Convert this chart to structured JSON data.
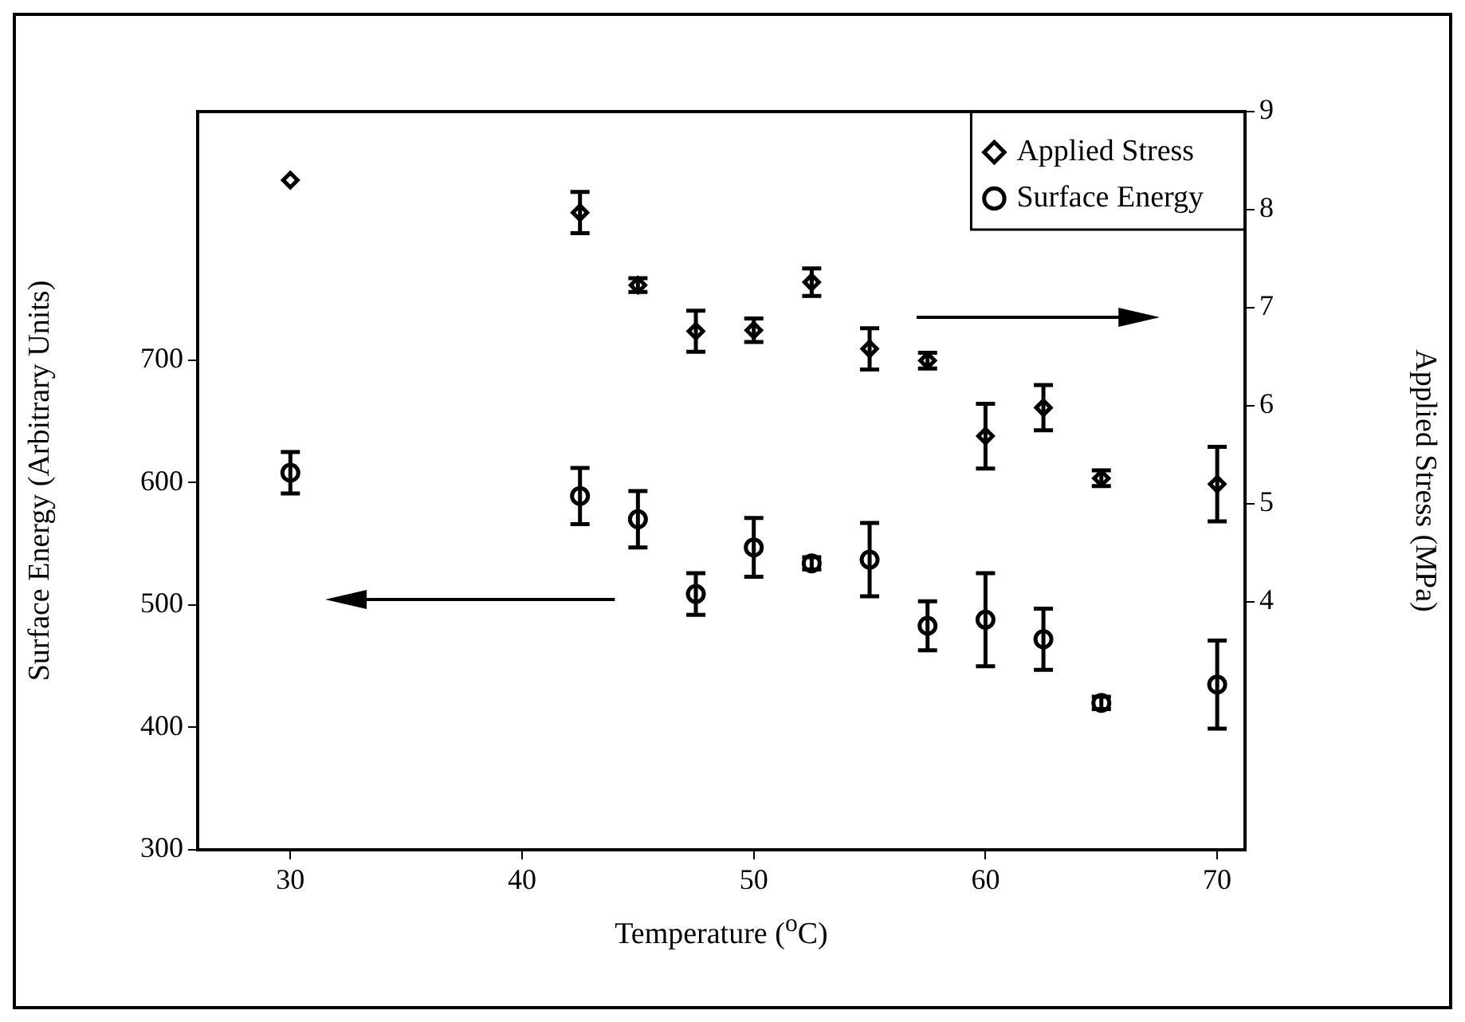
{
  "chart_data": {
    "type": "scatter",
    "xlabel": "Temperature ($^{o}$C)",
    "ylabel": "Surface Energy (Arbitrary Units)",
    "y2label": "Applied Stress (MPa)",
    "x": [
      30,
      42.5,
      45,
      47.5,
      50,
      52.5,
      55,
      57.5,
      60,
      62.5,
      65,
      70
    ],
    "series": [
      {
        "name": "Applied Stress",
        "color": "#000000",
        "marker": "diamond",
        "axis": "y2",
        "values": [
          8.3,
          7.97,
          7.23,
          6.76,
          6.77,
          7.26,
          6.58,
          6.46,
          5.69,
          5.98,
          5.26,
          5.2
        ],
        "errors": [
          null,
          0.21,
          0.07,
          0.21,
          0.12,
          0.14,
          0.21,
          0.08,
          0.33,
          0.23,
          0.08,
          0.38
        ]
      },
      {
        "name": "Surface Energy",
        "color": "#000000",
        "marker": "circle",
        "values": [
          608,
          589,
          570,
          509,
          547,
          534,
          537,
          483,
          488,
          472,
          420,
          435
        ],
        "errors": [
          17,
          23,
          23,
          17,
          24,
          5,
          30,
          20,
          38,
          25,
          5,
          36
        ]
      }
    ],
    "xlim": [
      26,
      71.2
    ],
    "xticks": [
      30,
      40,
      50,
      60,
      70
    ],
    "ylim": [
      300,
      903
    ],
    "yticks": [
      300,
      400,
      500,
      600,
      700
    ],
    "y2lim": [
      1.47,
      9
    ],
    "y2ticks": [
      4,
      5,
      6,
      7,
      8,
      9
    ],
    "legend": "top right",
    "grid": false
  }
}
